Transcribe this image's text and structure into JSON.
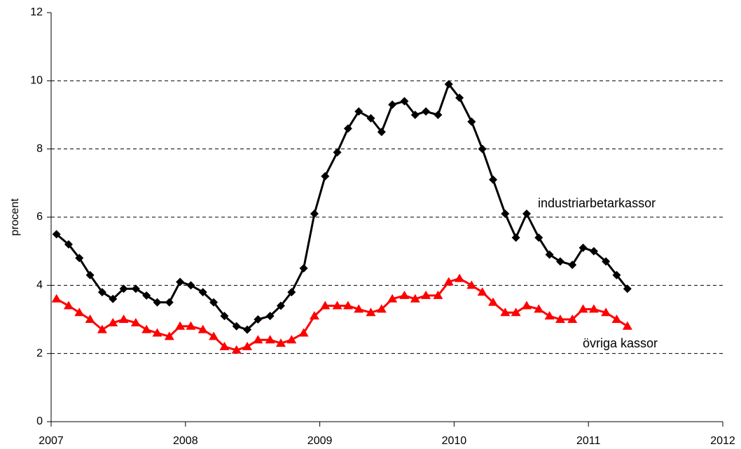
{
  "chart_data": {
    "type": "line",
    "y_label": "procent",
    "x": [
      2007.04,
      2007.13,
      2007.21,
      2007.29,
      2007.38,
      2007.46,
      2007.54,
      2007.63,
      2007.71,
      2007.79,
      2007.88,
      2007.96,
      2008.04,
      2008.13,
      2008.21,
      2008.29,
      2008.38,
      2008.46,
      2008.54,
      2008.63,
      2008.71,
      2008.79,
      2008.88,
      2008.96,
      2009.04,
      2009.13,
      2009.21,
      2009.29,
      2009.38,
      2009.46,
      2009.54,
      2009.63,
      2009.71,
      2009.79,
      2009.88,
      2009.96,
      2010.04,
      2010.13,
      2010.21,
      2010.29,
      2010.38,
      2010.46,
      2010.54,
      2010.63,
      2010.71,
      2010.79,
      2010.88,
      2010.96,
      2011.04,
      2011.13,
      2011.21,
      2011.29
    ],
    "series": [
      {
        "name": "industriarbetarkassor",
        "color": "#000000",
        "marker": "diamond",
        "values": [
          5.5,
          5.2,
          4.8,
          4.3,
          3.8,
          3.6,
          3.9,
          3.9,
          3.7,
          3.5,
          3.5,
          4.1,
          4.0,
          3.8,
          3.5,
          3.1,
          2.8,
          2.7,
          3.0,
          3.1,
          3.4,
          3.8,
          4.5,
          6.1,
          7.2,
          7.9,
          8.6,
          9.1,
          8.9,
          8.5,
          9.3,
          9.4,
          9.0,
          9.1,
          9.0,
          9.9,
          9.5,
          8.8,
          8.0,
          7.1,
          6.1,
          5.4,
          6.1,
          5.4,
          4.9,
          4.7,
          4.6,
          5.1,
          5.0,
          4.7,
          4.3,
          3.9
        ]
      },
      {
        "name": "övriga kassor",
        "color": "#ff0000",
        "marker": "triangle",
        "values": [
          3.6,
          3.4,
          3.2,
          3.0,
          2.7,
          2.9,
          3.0,
          2.9,
          2.7,
          2.6,
          2.5,
          2.8,
          2.8,
          2.7,
          2.5,
          2.2,
          2.1,
          2.2,
          2.4,
          2.4,
          2.3,
          2.4,
          2.6,
          3.1,
          3.4,
          3.4,
          3.4,
          3.3,
          3.2,
          3.3,
          3.6,
          3.7,
          3.6,
          3.7,
          3.7,
          4.1,
          4.2,
          4.0,
          3.8,
          3.5,
          3.2,
          3.2,
          3.4,
          3.3,
          3.1,
          3.0,
          3.0,
          3.3,
          3.3,
          3.2,
          3.0,
          2.8
        ]
      }
    ],
    "xlim": [
      2007,
      2012
    ],
    "xticks": [
      2007,
      2008,
      2009,
      2010,
      2011,
      2012
    ],
    "ylim": [
      0,
      12
    ],
    "yticks": [
      0,
      2,
      4,
      6,
      8,
      10,
      12
    ],
    "grid": true
  }
}
